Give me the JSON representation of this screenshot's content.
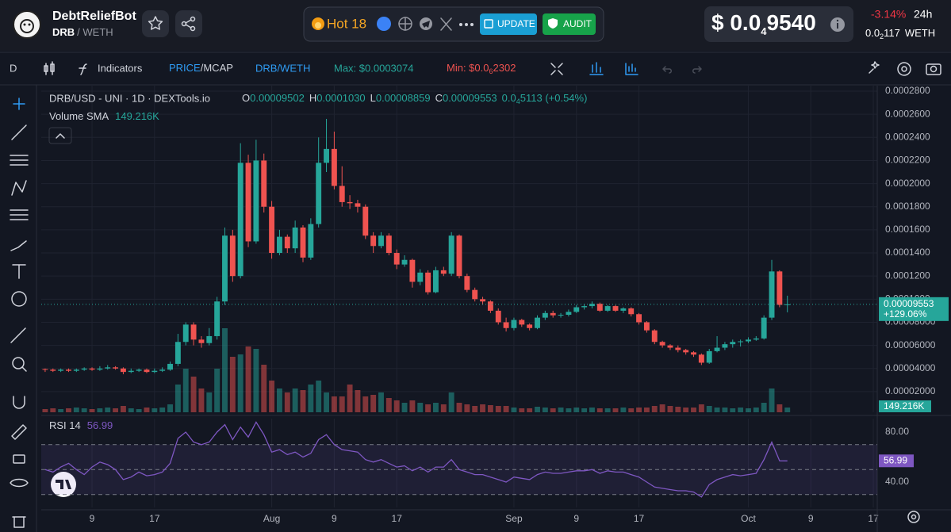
{
  "header": {
    "name": "DebtReliefBot",
    "symbol": "DRB",
    "quote": "/ WETH",
    "hot": "Hot 18",
    "update": "UPDATE",
    "audit": "AUDIT",
    "price": {
      "prefix": "$ 0.0",
      "sub": "4",
      "digits": "9540"
    },
    "change": "-3.14%",
    "period": "24h",
    "price_weth": {
      "prefix": "0.0",
      "sub": "2",
      "digits": "117"
    },
    "quote_unit": "WETH"
  },
  "toolbar": {
    "interval": "D",
    "indicators": "Indicators",
    "price": "PRICE",
    "mcap": "/MCAP",
    "pair": "DRB/WETH",
    "max": "Max: $0.0003074",
    "min": {
      "prefix": "Min: $0.0",
      "sub": "6",
      "digits": "2302"
    }
  },
  "chart_data": {
    "type": "candlestick",
    "title": "DRB/USD - UNI · 1D · DEXTools.io",
    "legend": [
      {
        "key": "O",
        "value": "0.00009502"
      },
      {
        "key": "H",
        "value": "0.0001030"
      },
      {
        "key": "L",
        "value": "0.00008859"
      },
      {
        "key": "C",
        "value": "0.00009553"
      }
    ],
    "legend_change": {
      "prefix": "0.0",
      "sub": "4",
      "rest": "5113 (+0.54%)"
    },
    "volume_title": "Volume SMA",
    "volume_sma": "149.216K",
    "rsi_title": "RSI 14",
    "price_change_label": "+129.06%",
    "up_color": "#26a69a",
    "down_color": "#ef5350",
    "rsi_color": "#7e57c2",
    "grid": true,
    "ohlc": [
      [
        3.95e-05,
        4e-05,
        3.7e-05,
        3.9e-05
      ],
      [
        3.9e-05,
        4e-05,
        3.7e-05,
        3.8e-05
      ],
      [
        3.8e-05,
        4e-05,
        3.7e-05,
        3.9e-05
      ],
      [
        3.9e-05,
        4e-05,
        3.7e-05,
        3.8e-05
      ],
      [
        3.8e-05,
        4e-05,
        3.7e-05,
        3.9e-05
      ],
      [
        3.9e-05,
        4.1e-05,
        3.8e-05,
        4e-05
      ],
      [
        4e-05,
        4.1e-05,
        3.8e-05,
        3.9e-05
      ],
      [
        3.9e-05,
        4.2e-05,
        3.8e-05,
        4e-05
      ],
      [
        4e-05,
        4.3e-05,
        3.9e-05,
        4.1e-05
      ],
      [
        4.1e-05,
        4.2e-05,
        3.9e-05,
        4e-05
      ],
      [
        4e-05,
        4.1e-05,
        3.5e-05,
        3.7e-05
      ],
      [
        3.7e-05,
        4e-05,
        3.6e-05,
        3.8e-05
      ],
      [
        3.8e-05,
        4e-05,
        3.7e-05,
        3.9e-05
      ],
      [
        3.9e-05,
        4e-05,
        3.6e-05,
        3.7e-05
      ],
      [
        3.7e-05,
        4e-05,
        3.6e-05,
        3.8e-05
      ],
      [
        3.8e-05,
        4.1e-05,
        3.7e-05,
        3.9e-05
      ],
      [
        3.9e-05,
        4.6e-05,
        3.8e-05,
        4.4e-05
      ],
      [
        4.4e-05,
        7e-05,
        4.2e-05,
        6.3e-05
      ],
      [
        6.3e-05,
        8e-05,
        6e-05,
        7.8e-05
      ],
      [
        7.8e-05,
        8e-05,
        6e-05,
        6.5e-05
      ],
      [
        6.5e-05,
        6.8e-05,
        5.8e-05,
        6.2e-05
      ],
      [
        6.2e-05,
        7.5e-05,
        6e-05,
        6.8e-05
      ],
      [
        6.8e-05,
        0.000102,
        6.5e-05,
        9.8e-05
      ],
      [
        9.8e-05,
        0.000162,
        9.5e-05,
        0.000155
      ],
      [
        0.000155,
        0.00016,
        0.000115,
        0.00012
      ],
      [
        0.00012,
        0.000235,
        0.000118,
        0.000218
      ],
      [
        0.000218,
        0.000225,
        0.000145,
        0.00015
      ],
      [
        0.00015,
        0.000238,
        0.000148,
        0.00022
      ],
      [
        0.00022,
        0.000226,
        0.000175,
        0.00018
      ],
      [
        0.00018,
        0.000185,
        0.000135,
        0.00014
      ],
      [
        0.00014,
        0.00016,
        0.000138,
        0.000154
      ],
      [
        0.000154,
        0.000156,
        0.00014,
        0.000144
      ],
      [
        0.000144,
        0.000168,
        0.00014,
        0.000162
      ],
      [
        0.000162,
        0.000164,
        0.000132,
        0.000136
      ],
      [
        0.000136,
        0.00017,
        0.000134,
        0.000165
      ],
      [
        0.000165,
        0.00024,
        0.000162,
        0.000218
      ],
      [
        0.000218,
        0.000256,
        0.00021,
        0.00023
      ],
      [
        0.00023,
        0.000245,
        0.000195,
        0.000198
      ],
      [
        0.000198,
        0.000215,
        0.00018,
        0.000184
      ],
      [
        0.000184,
        0.00019,
        0.000178,
        0.000183
      ],
      [
        0.000183,
        0.000186,
        0.000175,
        0.00018
      ],
      [
        0.00018,
        0.000182,
        0.000152,
        0.000155
      ],
      [
        0.000155,
        0.000158,
        0.00014,
        0.000146
      ],
      [
        0.000146,
        0.000158,
        0.000144,
        0.000155
      ],
      [
        0.000155,
        0.000157,
        0.000138,
        0.00014
      ],
      [
        0.00014,
        0.000143,
        0.000126,
        0.00013
      ],
      [
        0.00013,
        0.000138,
        0.000128,
        0.000134
      ],
      [
        0.000134,
        0.000135,
        0.00011,
        0.000115
      ],
      [
        0.000115,
        0.000126,
        0.000112,
        0.000123
      ],
      [
        0.000123,
        0.000125,
        0.000104,
        0.000106
      ],
      [
        0.000106,
        0.000128,
        0.000105,
        0.000125
      ],
      [
        0.000125,
        0.000128,
        0.00012,
        0.000122
      ],
      [
        0.000122,
        0.000158,
        0.00012,
        0.000155
      ],
      [
        0.000155,
        0.000156,
        0.000118,
        0.00012
      ],
      [
        0.00012,
        0.000122,
        0.000106,
        0.000108
      ],
      [
        0.000108,
        0.00011,
        9.8e-05,
        0.0001
      ],
      [
        0.0001,
        0.000102,
        9.5e-05,
        9.8e-05
      ],
      [
        9.8e-05,
        9.9e-05,
        8.8e-05,
        9e-05
      ],
      [
        9e-05,
        9.2e-05,
        7.8e-05,
        8e-05
      ],
      [
        8e-05,
        8.4e-05,
        7.2e-05,
        7.5e-05
      ],
      [
        7.5e-05,
        8.4e-05,
        7.3e-05,
        8.2e-05
      ],
      [
        8.2e-05,
        8.3e-05,
        7.6e-05,
        7.8e-05
      ],
      [
        7.8e-05,
        7.9e-05,
        7.3e-05,
        7.5e-05
      ],
      [
        7.5e-05,
        8.6e-05,
        7.4e-05,
        8.4e-05
      ],
      [
        8.4e-05,
        9e-05,
        8.2e-05,
        8.8e-05
      ],
      [
        8.8e-05,
        9e-05,
        8.4e-05,
        8.6e-05
      ],
      [
        8.6e-05,
        8.8e-05,
        8.4e-05,
        8.65e-05
      ],
      [
        8.65e-05,
        9.1e-05,
        8.5e-05,
        8.9e-05
      ],
      [
        8.9e-05,
        9.5e-05,
        8.8e-05,
        9.3e-05
      ],
      [
        9.3e-05,
        9.6e-05,
        9.1e-05,
        9.4e-05
      ],
      [
        9.4e-05,
        9.8e-05,
        9.2e-05,
        9.6e-05
      ],
      [
        9.6e-05,
        9.7e-05,
        8.9e-05,
        9e-05
      ],
      [
        9e-05,
        9.5e-05,
        8.9e-05,
        9.4e-05
      ],
      [
        9.4e-05,
        9.5e-05,
        8.9e-05,
        9e-05
      ],
      [
        9e-05,
        9.3e-05,
        8.8e-05,
        9.2e-05
      ],
      [
        9.2e-05,
        9.3e-05,
        8.5e-05,
        8.7e-05
      ],
      [
        8.7e-05,
        8.8e-05,
        7.8e-05,
        8e-05
      ],
      [
        8e-05,
        8.1e-05,
        7.1e-05,
        7.3e-05
      ],
      [
        7.3e-05,
        7.4e-05,
        6.1e-05,
        6.3e-05
      ],
      [
        6.3e-05,
        6.4e-05,
        5.8e-05,
        6e-05
      ],
      [
        6e-05,
        6.1e-05,
        5.6e-05,
        5.8e-05
      ],
      [
        5.8e-05,
        6e-05,
        5.4e-05,
        5.6e-05
      ],
      [
        5.6e-05,
        5.7e-05,
        5.2e-05,
        5.4e-05
      ],
      [
        5.4e-05,
        5.5e-05,
        5e-05,
        5.2e-05
      ],
      [
        5.2e-05,
        5.3e-05,
        4.3e-05,
        4.5e-05
      ],
      [
        4.5e-05,
        5.7e-05,
        4.4e-05,
        5.5e-05
      ],
      [
        5.5e-05,
        6.8e-05,
        5.4e-05,
        5.8e-05
      ],
      [
        5.8e-05,
        6.3e-05,
        5.6e-05,
        6.1e-05
      ],
      [
        6.1e-05,
        6.5e-05,
        5.8e-05,
        6.3e-05
      ],
      [
        6.3e-05,
        6.5e-05,
        5.9e-05,
        6.35e-05
      ],
      [
        6.35e-05,
        6.7e-05,
        6.2e-05,
        6.5e-05
      ],
      [
        6.5e-05,
        6.8e-05,
        6.4e-05,
        6.6e-05
      ],
      [
        6.6e-05,
        8.6e-05,
        6.5e-05,
        8.4e-05
      ],
      [
        8.4e-05,
        0.000134,
        8.2e-05,
        0.000124
      ],
      [
        0.000124,
        0.000125,
        9.3e-05,
        9.5e-05
      ],
      [
        9.502e-05,
        0.000103,
        8.859e-05,
        9.553e-05
      ]
    ],
    "volume": [
      80000,
      100000,
      80000,
      100000,
      120000,
      100000,
      80000,
      100000,
      120000,
      100000,
      160000,
      100000,
      80000,
      120000,
      100000,
      120000,
      200000,
      700000,
      1100000,
      900000,
      600000,
      500000,
      1100000,
      2120000,
      1400000,
      1460000,
      1660000,
      1600000,
      1200000,
      800000,
      600000,
      500000,
      600000,
      560000,
      700000,
      800000,
      500000,
      400000,
      400000,
      700000,
      560000,
      400000,
      440000,
      500000,
      360000,
      300000,
      240000,
      300000,
      240000,
      200000,
      240000,
      200000,
      500000,
      240000,
      200000,
      160000,
      200000,
      180000,
      160000,
      160000,
      120000,
      100000,
      100000,
      140000,
      120000,
      100000,
      120000,
      100000,
      120000,
      100000,
      120000,
      100000,
      100000,
      100000,
      120000,
      100000,
      120000,
      120000,
      160000,
      200000,
      160000,
      140000,
      120000,
      120000,
      200000,
      160000,
      120000,
      120000,
      100000,
      120000,
      100000,
      120000,
      240000,
      600000,
      200000,
      120000
    ],
    "rsi": [
      50,
      48,
      52,
      55,
      50,
      46,
      52,
      56,
      54,
      50,
      42,
      44,
      48,
      45,
      46,
      48,
      55,
      75,
      80,
      72,
      70,
      72,
      80,
      86,
      74,
      84,
      76,
      88,
      78,
      64,
      66,
      62,
      64,
      60,
      63,
      74,
      78,
      70,
      66,
      65,
      64,
      58,
      56,
      58,
      55,
      52,
      53,
      49,
      52,
      48,
      52,
      52,
      58,
      50,
      48,
      46,
      46,
      44,
      42,
      40,
      44,
      43,
      42,
      46,
      48,
      47,
      47,
      48,
      49,
      49,
      50,
      47,
      49,
      48,
      48,
      46,
      44,
      40,
      36,
      35,
      34,
      33,
      33,
      32,
      28,
      38,
      42,
      44,
      46,
      45,
      46,
      47,
      58,
      72,
      57,
      56.99
    ],
    "ylim": [
      2.1e-06,
      0.0002848
    ],
    "yticks": [
      {
        "value": 0.00028,
        "label": "0.0002800"
      },
      {
        "value": 0.00026,
        "label": "0.0002600"
      },
      {
        "value": 0.00024,
        "label": "0.0002400"
      },
      {
        "value": 0.00022,
        "label": "0.0002200"
      },
      {
        "value": 0.0002,
        "label": "0.0002000"
      },
      {
        "value": 0.00018,
        "label": "0.0001800"
      },
      {
        "value": 0.00016,
        "label": "0.0001600"
      },
      {
        "value": 0.00014,
        "label": "0.0001400"
      },
      {
        "value": 0.00012,
        "label": "0.0001200"
      },
      {
        "value": 0.0001,
        "label": "0.0001000"
      },
      {
        "value": 8e-05,
        "label": "0.00008000"
      },
      {
        "value": 6e-05,
        "label": "0.00006000"
      },
      {
        "value": 4e-05,
        "label": "0.00004000"
      },
      {
        "value": 2e-05,
        "label": "0.00002000"
      }
    ],
    "rsi_ylim": [
      19.7,
      90.8
    ],
    "rsi_yticks": [
      {
        "value": 80,
        "label": "80.00"
      },
      {
        "value": 40,
        "label": "40.00"
      }
    ],
    "rsi_bands": [
      30,
      50,
      70
    ],
    "xlim": [
      -0.5,
      106.5
    ],
    "xticks": [
      {
        "value": 6,
        "label": "9"
      },
      {
        "value": 14,
        "label": "17"
      },
      {
        "value": 29,
        "label": "Aug"
      },
      {
        "value": 37,
        "label": "9"
      },
      {
        "value": 45,
        "label": "17"
      },
      {
        "value": 60,
        "label": "Sep"
      },
      {
        "value": 68,
        "label": "9"
      },
      {
        "value": 76,
        "label": "17"
      },
      {
        "value": 90,
        "label": "Oct"
      },
      {
        "value": 98,
        "label": "9"
      },
      {
        "value": 106,
        "label": "17"
      }
    ]
  }
}
